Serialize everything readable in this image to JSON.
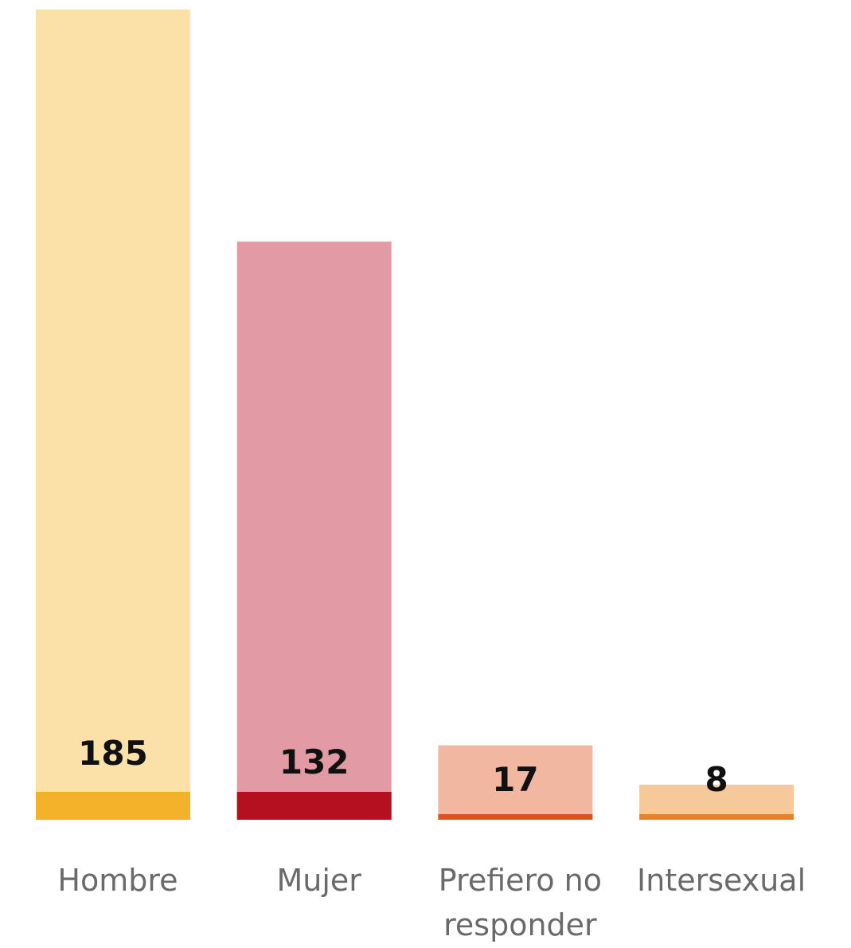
{
  "chart_data": {
    "type": "bar",
    "title": "",
    "xlabel": "",
    "ylabel": "",
    "categories": [
      "Hombre",
      "Mujer",
      "Prefiero no responder",
      "Intersexual"
    ],
    "category_label_lines": [
      [
        "Hombre"
      ],
      [
        "Mujer"
      ],
      [
        "Prefiero no",
        "responder"
      ],
      [
        "Intersexual"
      ]
    ],
    "values": [
      185,
      132,
      17,
      8
    ],
    "ylim": [
      0,
      185
    ],
    "grid": false,
    "legend": "none",
    "colors": {
      "light": [
        "#FBE0A8",
        "#E29BA4",
        "#F1B7A1",
        "#F6C99A"
      ],
      "dark": [
        "#F4B12A",
        "#B41020",
        "#D8541F",
        "#E5832A"
      ]
    }
  }
}
